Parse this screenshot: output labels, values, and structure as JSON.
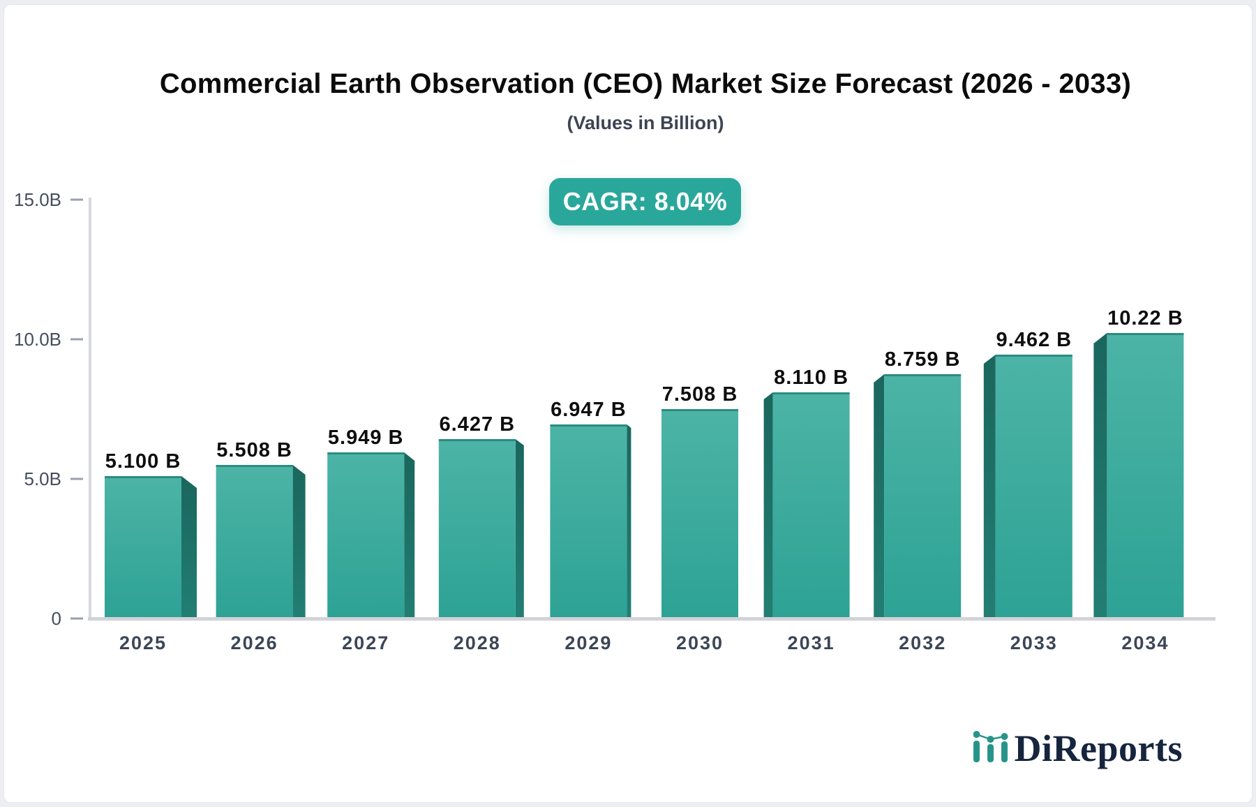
{
  "header": {
    "title": "Commercial Earth Observation (CEO) Market Size Forecast (2026 - 2033)",
    "subtitle": "(Values in Billion)",
    "cagr_badge": "CAGR: 8.04%",
    "badge_color": "#2aa79b"
  },
  "chart_data": {
    "type": "bar",
    "title": "Commercial Earth Observation (CEO) Market Size Forecast (2026 - 2033)",
    "subtitle": "(Values in Billion)",
    "categories": [
      "2025",
      "2026",
      "2027",
      "2028",
      "2029",
      "2030",
      "2031",
      "2032",
      "2033",
      "2034"
    ],
    "values": [
      5.1,
      5.508,
      5.949,
      6.427,
      6.947,
      7.508,
      8.11,
      8.759,
      9.462,
      10.22
    ],
    "value_labels": [
      "5.100 B",
      "5.508 B",
      "5.949 B",
      "6.427 B",
      "6.947 B",
      "7.508 B",
      "8.110 B",
      "8.759 B",
      "9.462 B",
      "10.22 B"
    ],
    "xlabel": "",
    "ylabel": "",
    "ylim": [
      0,
      15
    ],
    "yticks": [
      {
        "value": 0,
        "label": "0"
      },
      {
        "value": 5,
        "label": "5.0B"
      },
      {
        "value": 10,
        "label": "10.0B"
      },
      {
        "value": 15,
        "label": "15.0B"
      }
    ],
    "grid": false,
    "legend": false,
    "bar_style": "3d-extruded",
    "colors": {
      "face_top": "#4cb4a6",
      "face_bottom": "#2da295",
      "top_cap": "#2b8b7f",
      "side_top": "#1a665d",
      "side_bottom": "#227e73",
      "axis_line": "#d8d9de",
      "baseline": "#d2d3d9",
      "tick_dash": "#99a0ac",
      "tick_text": "#454d5e",
      "category_text": "#3c4656",
      "value_text": "#0e0e0e"
    }
  },
  "branding": {
    "logo_text": "DiReports",
    "logo_text_color": "#16253d",
    "icon_color": "#27948a",
    "icon_name": "bar-line-chart-icon"
  }
}
